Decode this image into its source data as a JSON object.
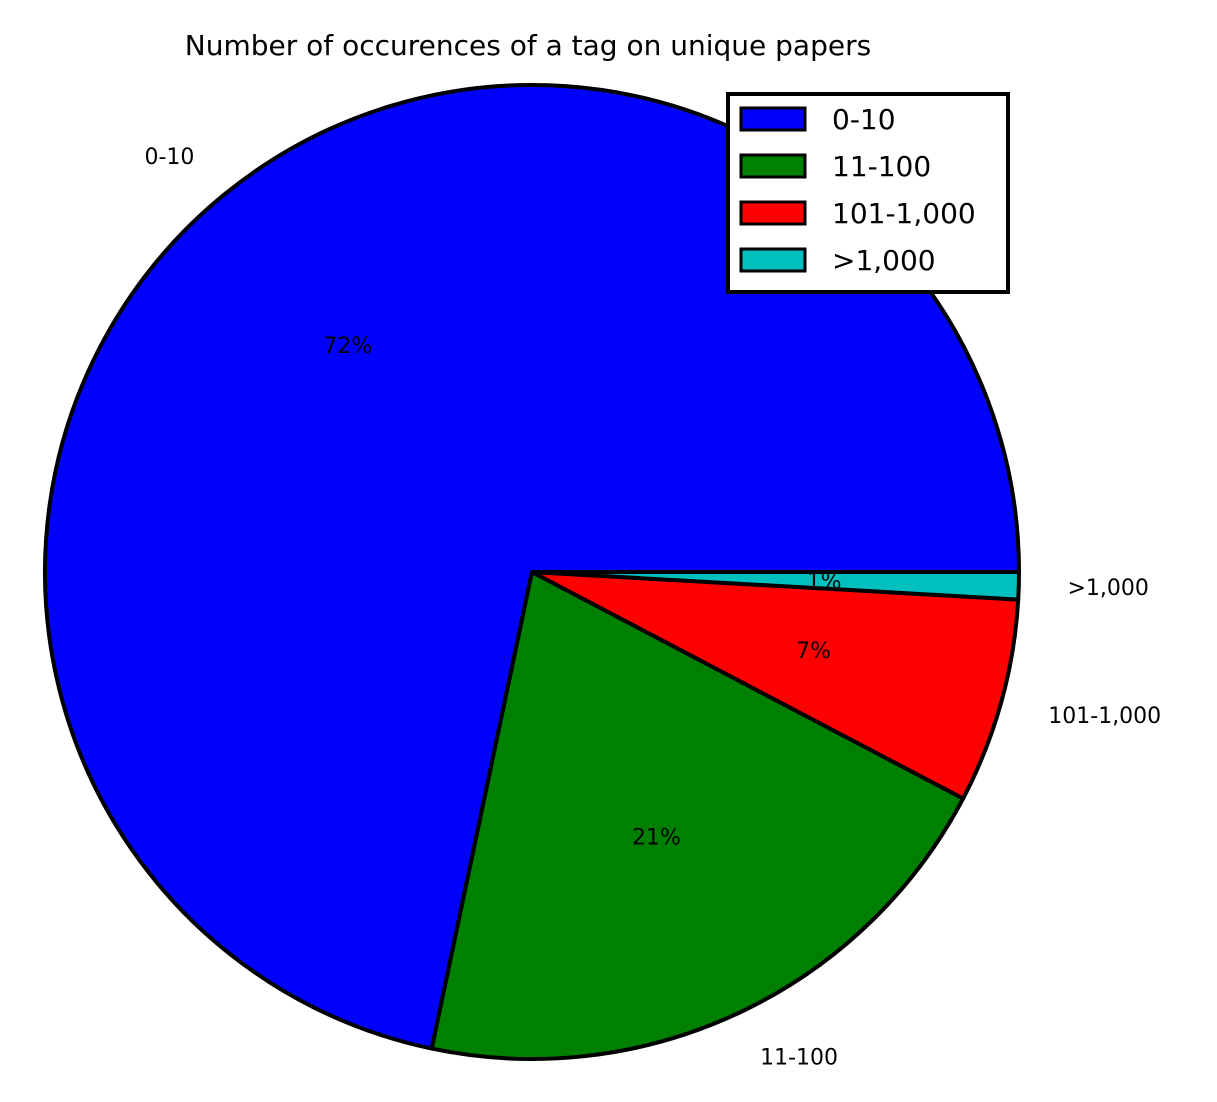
{
  "chart_data": {
    "type": "pie",
    "title": "Number of occurences of a tag on unique papers",
    "slices": [
      {
        "label": "0-10",
        "value": 71.7,
        "pct_label": "72%",
        "color": "#0000ff"
      },
      {
        "label": "11-100",
        "value": 20.6,
        "pct_label": "21%",
        "color": "#008000"
      },
      {
        "label": "101-1,000",
        "value": 6.8,
        "pct_label": "7%",
        "color": "#ff0000"
      },
      {
        "label": ">1,000",
        "value": 0.9,
        "pct_label": "1%",
        "color": "#00bfbf"
      }
    ],
    "legend": {
      "position": "upper-right"
    }
  }
}
